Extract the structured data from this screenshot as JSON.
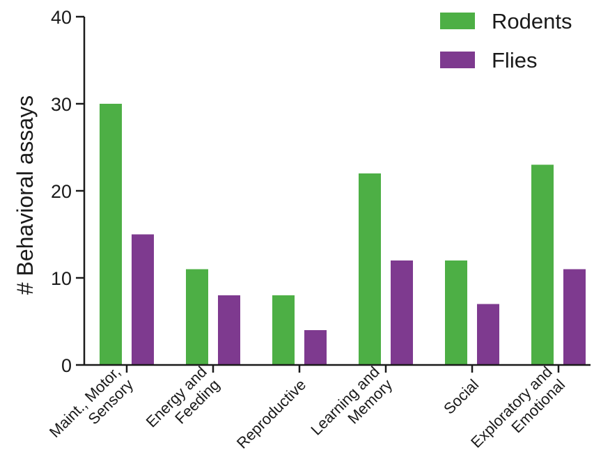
{
  "chart_data": {
    "type": "bar",
    "title": "",
    "xlabel": "",
    "ylabel": "# Behavioral assays",
    "ylim": [
      0,
      40
    ],
    "yticks": [
      0,
      10,
      20,
      30,
      40
    ],
    "grid": false,
    "legend_position": "top-right",
    "categories": [
      [
        "Maint., Motor,",
        "Sensory"
      ],
      [
        "Energy and",
        "Feeding"
      ],
      [
        "Reproductive"
      ],
      [
        "Learning and",
        "Memory"
      ],
      [
        "Social"
      ],
      [
        "Exploratory and",
        "Emotional"
      ]
    ],
    "series": [
      {
        "name": "Rodents",
        "color": "#4daf45",
        "values": [
          30,
          11,
          8,
          22,
          12,
          23
        ]
      },
      {
        "name": "Flies",
        "color": "#7e3a8f",
        "values": [
          15,
          8,
          4,
          12,
          7,
          11
        ]
      }
    ]
  }
}
